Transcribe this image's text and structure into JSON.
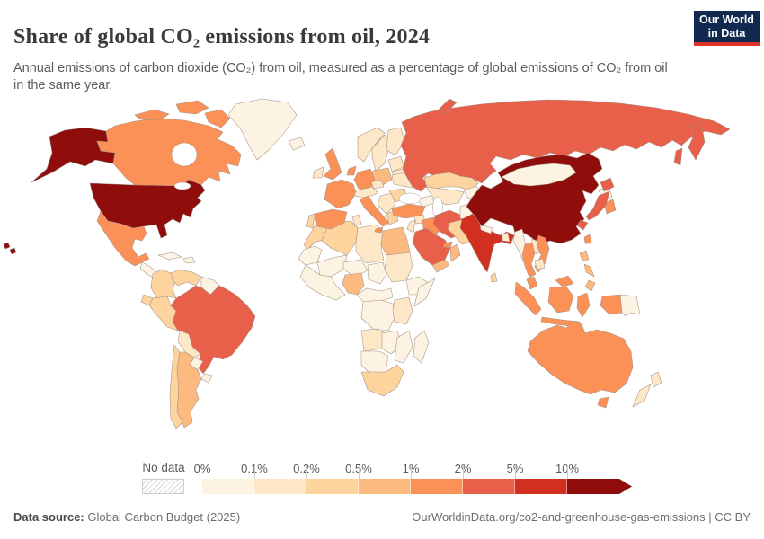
{
  "header": {
    "title": "Share of global CO₂ emissions from oil, 2024",
    "subtitle": "Annual emissions of carbon dioxide (CO₂) from oil, measured as a percentage of global emissions of CO₂ from oil in the same year.",
    "logo": {
      "line1": "Our World",
      "line2": "in Data",
      "bg_color": "#12294f",
      "stripe_color": "#dd352c"
    }
  },
  "legend": {
    "no_data_label": "No data",
    "tick_labels": [
      "0%",
      "0.1%",
      "0.2%",
      "0.5%",
      "1%",
      "2%",
      "5%",
      "10%"
    ],
    "bin_colors": [
      "#fdf3e3",
      "#fde7c7",
      "#fdd39e",
      "#fcba80",
      "#fc9158",
      "#e8604a",
      "#d13020",
      "#8f0d0b"
    ]
  },
  "footer": {
    "source_label": "Data source:",
    "source_value": " Global Carbon Budget (2025)",
    "link": "OurWorldinData.org/co2-and-greenhouse-gas-emissions",
    "separator": " | ",
    "license": "CC BY"
  },
  "map_data": {
    "type": "choropleth-world-map",
    "metric": "Share of global CO₂ emissions from oil, 2024 (%)",
    "bins": [
      "0–0.1%",
      "0.1–0.2%",
      "0.2–0.5%",
      "0.5–1%",
      "1–2%",
      "2–5%",
      "5–10%",
      ">10%"
    ],
    "no_data_fill": "#ffffff",
    "countries": {
      "united-states": ">10%",
      "china": ">10%",
      "india": "5–10%",
      "russia": "2–5%",
      "brazil": "2–5%",
      "saudi-arabia": "2–5%",
      "iran": "2–5%",
      "japan": "2–5%",
      "canada": "1–2%",
      "mexico": "1–2%",
      "united-kingdom": "1–2%",
      "france": "1–2%",
      "germany": "1–2%",
      "spain": "1–2%",
      "italy": "1–2%",
      "netherlands-belgium": "1–2%",
      "turkey": "1–2%",
      "iraq": "1–2%",
      "south-korea": "1–2%",
      "thailand": "1–2%",
      "vietnam": "1–2%",
      "malaysia": "1–2%",
      "indonesia": "1–2%",
      "australia": "1–2%",
      "taiwan": "1–2%",
      "united-arab-emirates": "1–2%",
      "argentina": "0.5–1%",
      "egypt": "0.5–1%",
      "nigeria": "0.5–1%",
      "poland": "0.5–1%",
      "yemen": "0.5–1%",
      "oman": "0.5–1%",
      "philippines": "0.5–1%",
      "morocco": "0.2–0.5%",
      "algeria": "0.2–0.5%",
      "colombia": "0.2–0.5%",
      "venezuela": "0.2–0.5%",
      "ecuador": "0.2–0.5%",
      "peru": "0.2–0.5%",
      "chile": "0.2–0.5%",
      "kazakhstan": "0.2–0.5%",
      "pakistan": "0.2–0.5%",
      "portugal": "0.2–0.5%",
      "romania": "0.2–0.5%",
      "greece": "0.2–0.5%",
      "south-africa": "0.2–0.5%",
      "sri-lanka": "0.2–0.5%",
      "libya": "0.1–0.2%",
      "tunisia": "0.1–0.2%",
      "sudan": "0.1–0.2%",
      "kenya-tanzania": "0.1–0.2%",
      "angola": "0.1–0.2%",
      "denmark": "0.1–0.2%",
      "norway": "0.1–0.2%",
      "sweden": "0.1–0.2%",
      "finland": "0.1–0.2%",
      "ukraine": "0.1–0.2%",
      "ireland": "0.1–0.2%",
      "laos": "0.1–0.2%",
      "cambodia": "0.1–0.2%",
      "switzerland-austria": "0.1–0.2%",
      "czechia": "0.1–0.2%",
      "balkans": "0.1–0.2%",
      "belarus": "0.1–0.2%",
      "baltic-states": "0.1–0.2%",
      "bangladesh": "0.1–0.2%",
      "new-zealand": "0.1–0.2%",
      "uzbekistan-turkmenistan": "0.1–0.2%",
      "syria": "0.1–0.2%",
      "israel-jordan": "0.1–0.2%",
      "bolivia": "0.1–0.2%",
      "greenland": "0–0.1%",
      "iceland": "0–0.1%",
      "central-america": "0–0.1%",
      "cuba": "0–0.1%",
      "hispaniola": "0–0.1%",
      "guyanas": "0–0.1%",
      "paraguay": "0–0.1%",
      "uruguay": "0–0.1%",
      "mauritania": "0–0.1%",
      "mali": "0–0.1%",
      "niger": "0–0.1%",
      "chad": "0–0.1%",
      "west-africa": "0–0.1%",
      "cameroon-car": "0–0.1%",
      "ethiopia": "0–0.1%",
      "somalia": "0–0.1%",
      "drc": "0–0.1%",
      "namibia-botswana": "0–0.1%",
      "madagascar": "0–0.1%",
      "zambia-zimbabwe": "0–0.1%",
      "mozambique": "0–0.1%",
      "mongolia": "0–0.1%",
      "north-korea": "0–0.1%",
      "afghanistan": "0–0.1%",
      "nepal": "0–0.1%",
      "myanmar": "0–0.1%",
      "papua-new-guinea": "0–0.1%",
      "kyrgyzstan-tajikistan": "0–0.1%",
      "caucasus": "0–0.1%"
    }
  }
}
